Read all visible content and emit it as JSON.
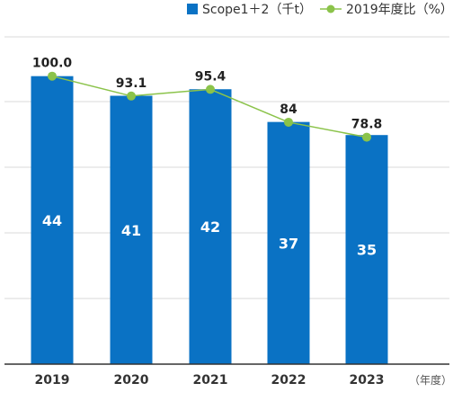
{
  "chart_data": {
    "type": "bar",
    "categories": [
      "2019",
      "2020",
      "2021",
      "2022",
      "2023"
    ],
    "series": [
      {
        "name": "Scope1＋2（千t）",
        "type": "bar",
        "values": [
          44,
          41,
          42,
          37,
          35
        ],
        "color": "#0a72c4"
      },
      {
        "name": "2019年度比（%）",
        "type": "line",
        "values": [
          100.0,
          93.1,
          95.4,
          84,
          78.8
        ],
        "value_labels": [
          "100.0",
          "93.1",
          "95.4",
          "84",
          "78.8"
        ],
        "color": "#8bc34a"
      }
    ],
    "x_unit": "（年度）",
    "ylim_bar": [
      0,
      50
    ],
    "ylim_line": [
      0,
      113.64
    ],
    "grid": true,
    "legend_position": "top-right"
  }
}
